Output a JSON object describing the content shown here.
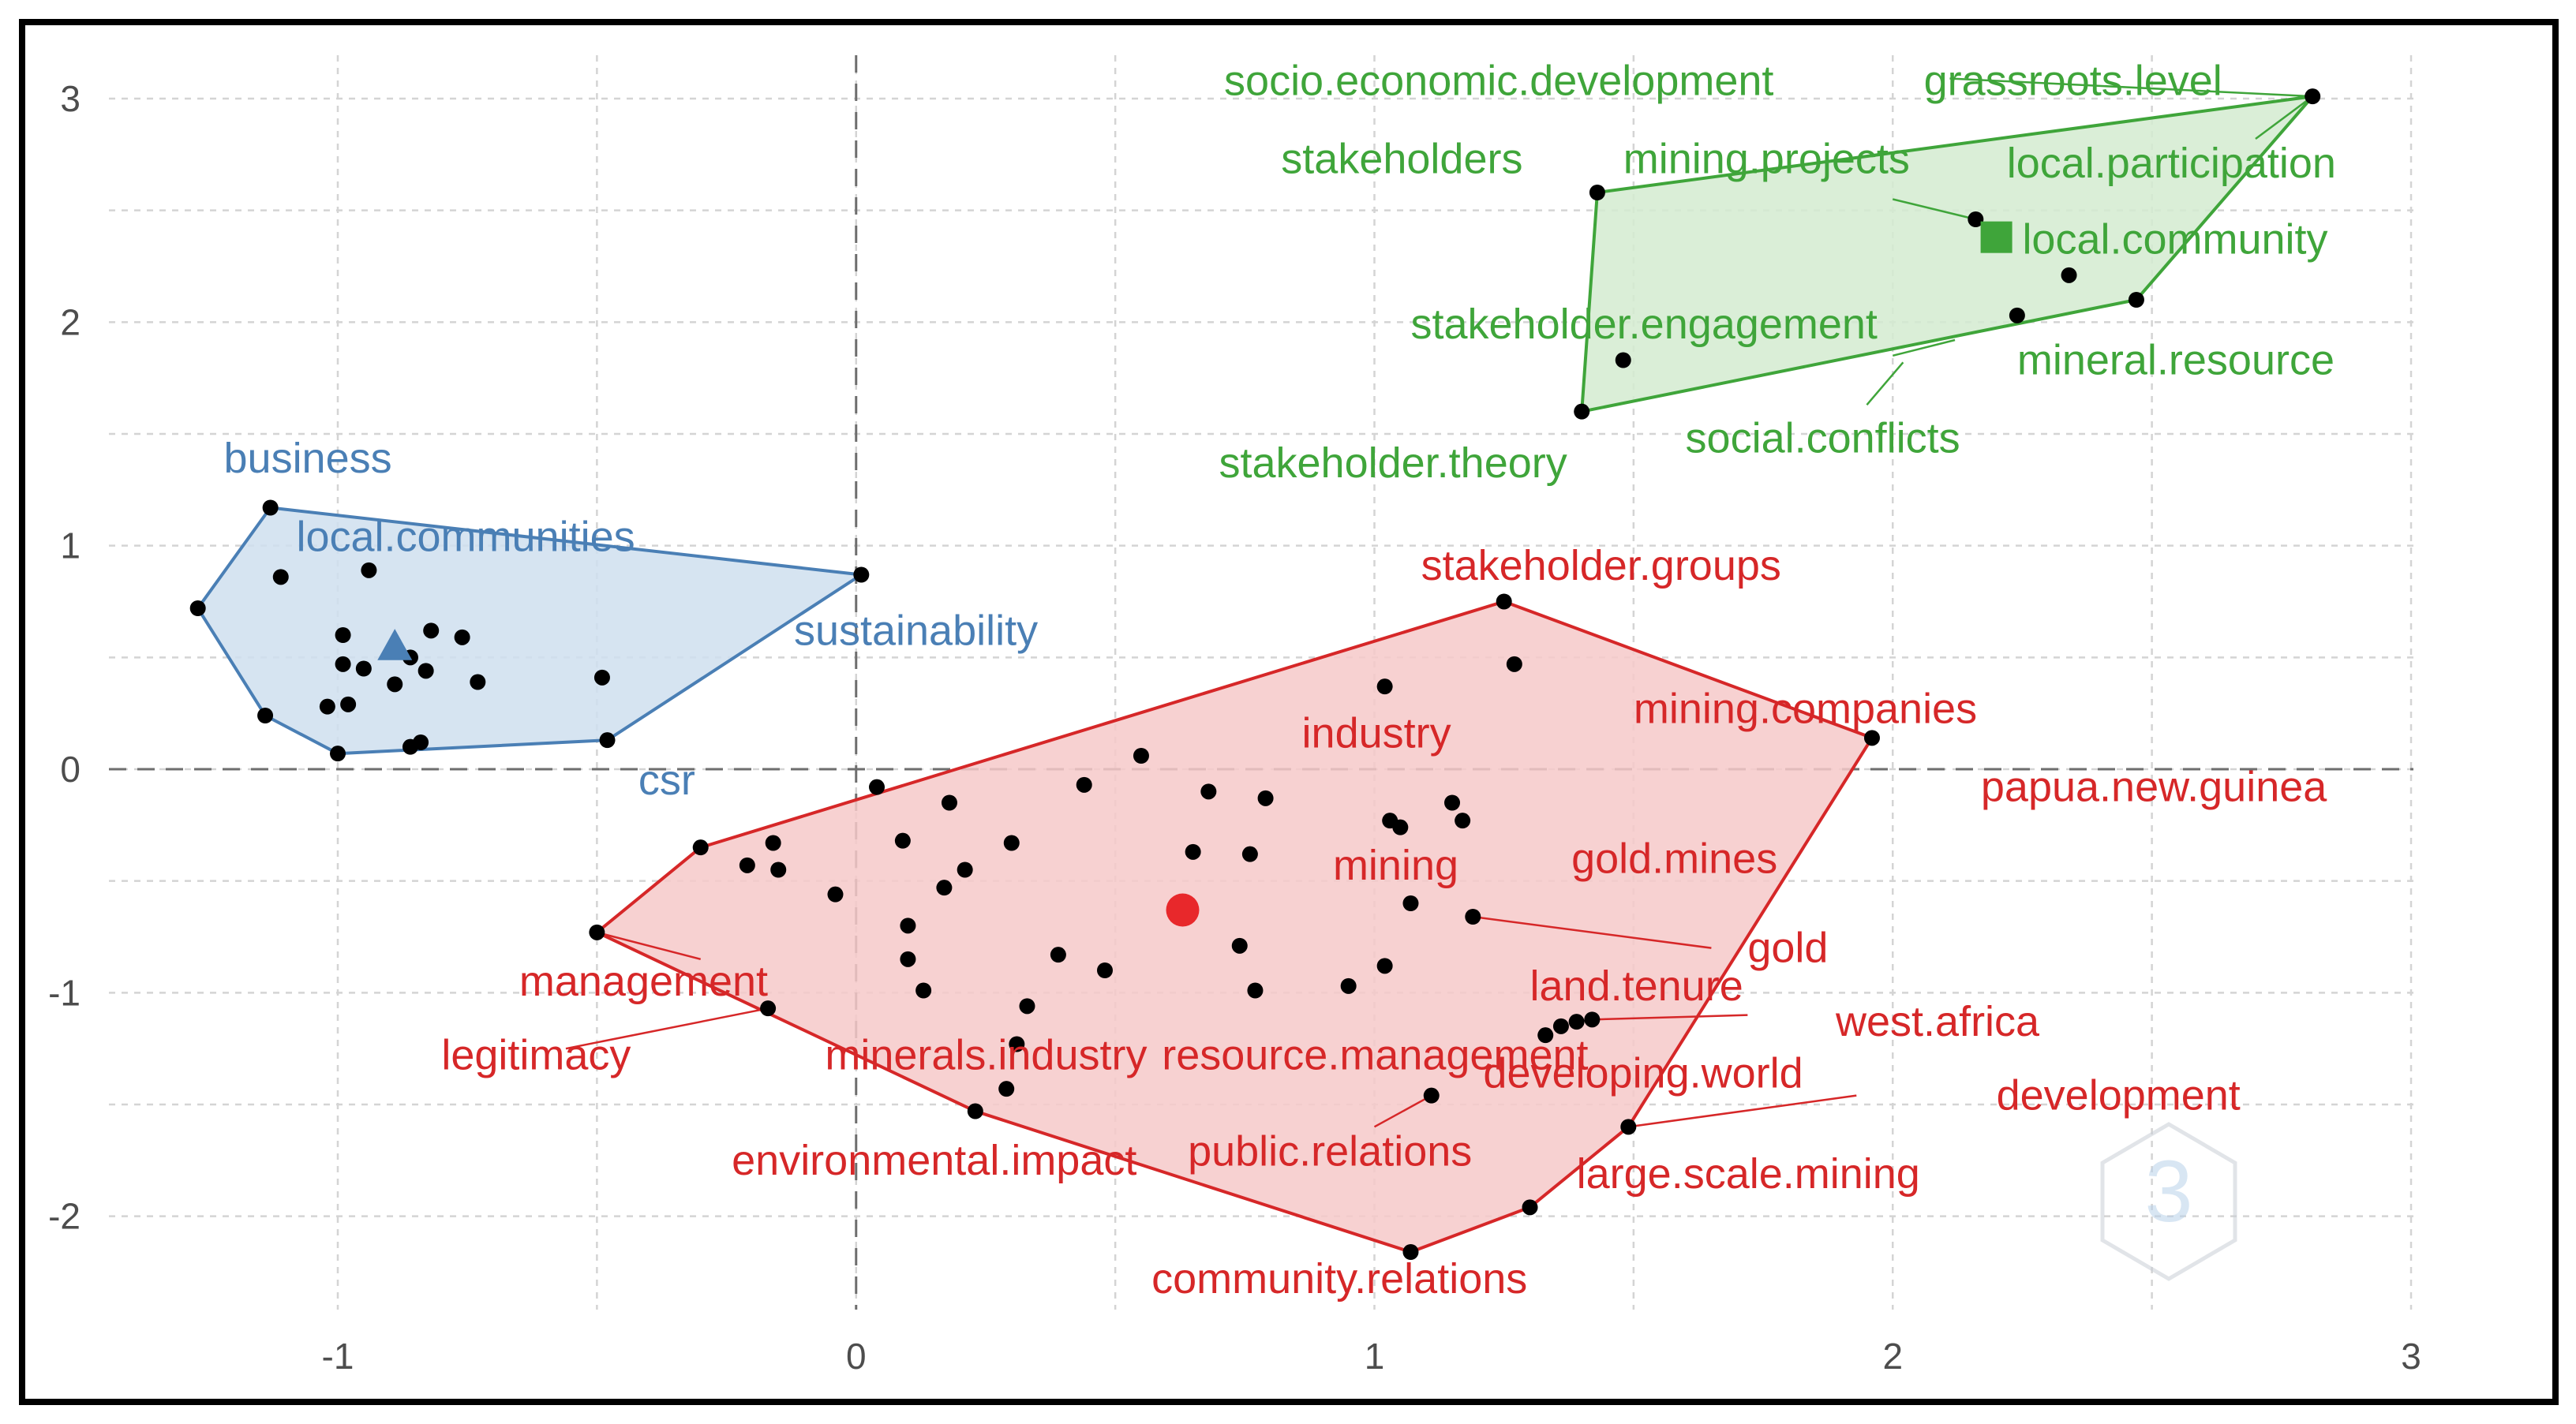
{
  "chart_data": {
    "type": "scatter",
    "title": "",
    "xlabel": "",
    "ylabel": "",
    "xlim": [
      -1.45,
      3.0
    ],
    "ylim": [
      -2.4,
      3.1
    ],
    "x_ticks": [
      -1,
      0,
      1,
      2,
      3
    ],
    "y_ticks": [
      3,
      2,
      1,
      0,
      -1,
      -2
    ],
    "grid": true,
    "colors": {
      "blue": "#4a7fb5",
      "green": "#3fa53a",
      "red": "#d62728",
      "point": "#000000"
    },
    "clusters": [
      {
        "name": "blue",
        "color": "#4a7fb5",
        "fill": "#cfdfee",
        "centroid": {
          "x": -0.89,
          "y": 0.55,
          "marker": "triangle"
        },
        "hull": [
          [
            -1.13,
            1.17
          ],
          [
            0.01,
            0.87
          ],
          [
            -0.48,
            0.13
          ],
          [
            -1.0,
            0.07
          ],
          [
            -1.14,
            0.24
          ],
          [
            -1.27,
            0.72
          ]
        ],
        "points": [
          [
            -1.13,
            1.17
          ],
          [
            -1.27,
            0.72
          ],
          [
            -1.11,
            0.86
          ],
          [
            -0.94,
            0.89
          ],
          [
            -0.99,
            0.6
          ],
          [
            -0.99,
            0.47
          ],
          [
            -0.95,
            0.45
          ],
          [
            -0.89,
            0.38
          ],
          [
            -0.86,
            0.5
          ],
          [
            -0.83,
            0.44
          ],
          [
            -0.82,
            0.62
          ],
          [
            -0.76,
            0.59
          ],
          [
            -0.73,
            0.39
          ],
          [
            -1.14,
            0.24
          ],
          [
            -1.02,
            0.28
          ],
          [
            -0.98,
            0.29
          ],
          [
            -1.0,
            0.07
          ],
          [
            -0.86,
            0.1
          ],
          [
            -0.84,
            0.12
          ],
          [
            -0.49,
            0.41
          ],
          [
            -0.48,
            0.13
          ],
          [
            0.01,
            0.87
          ]
        ],
        "labels": [
          {
            "text": "business",
            "x": -1.22,
            "y": 1.39
          },
          {
            "text": "local.communities",
            "x": -1.08,
            "y": 1.04
          },
          {
            "text": "sustainability",
            "x": -0.12,
            "y": 0.62
          },
          {
            "text": "csr",
            "x": -0.42,
            "y": -0.05
          }
        ]
      },
      {
        "name": "green",
        "color": "#3fa53a",
        "fill": "#d3ebd0",
        "centroid": {
          "x": 2.2,
          "y": 2.38,
          "marker": "square"
        },
        "hull": [
          [
            1.43,
            2.58
          ],
          [
            2.81,
            3.01
          ],
          [
            2.47,
            2.1
          ],
          [
            1.4,
            1.6
          ]
        ],
        "points": [
          [
            2.81,
            3.01
          ],
          [
            1.43,
            2.58
          ],
          [
            2.16,
            2.46
          ],
          [
            2.34,
            2.21
          ],
          [
            2.24,
            2.03
          ],
          [
            2.47,
            2.1
          ],
          [
            1.48,
            1.83
          ],
          [
            1.4,
            1.6
          ]
        ],
        "labels": [
          {
            "text": "socio.economic.development",
            "x": 0.71,
            "y": 3.08
          },
          {
            "text": "grassroots.level",
            "x": 2.06,
            "y": 3.08
          },
          {
            "text": "stakeholders",
            "x": 0.82,
            "y": 2.73
          },
          {
            "text": "mining.projects",
            "x": 1.48,
            "y": 2.73
          },
          {
            "text": "local.participation",
            "x": 2.22,
            "y": 2.71
          },
          {
            "text": "local.community",
            "x": 2.25,
            "y": 2.37
          },
          {
            "text": "stakeholder.engagement",
            "x": 1.07,
            "y": 1.99
          },
          {
            "text": "mineral.resource",
            "x": 2.24,
            "y": 1.83
          },
          {
            "text": "social.conflicts",
            "x": 1.6,
            "y": 1.48
          },
          {
            "text": "stakeholder.theory",
            "x": 0.7,
            "y": 1.37
          }
        ]
      },
      {
        "name": "red",
        "color": "#d62728",
        "fill": "#f6c9c9",
        "centroid": {
          "x": 0.63,
          "y": -0.63,
          "marker": "circle"
        },
        "hull": [
          [
            1.25,
            0.75
          ],
          [
            1.96,
            0.14
          ],
          [
            1.49,
            -1.6
          ],
          [
            1.3,
            -1.96
          ],
          [
            1.07,
            -2.16
          ],
          [
            0.23,
            -1.53
          ],
          [
            -0.5,
            -0.73
          ],
          [
            -0.3,
            -0.35
          ]
        ],
        "points": [
          [
            1.25,
            0.75
          ],
          [
            1.27,
            0.47
          ],
          [
            1.02,
            0.37
          ],
          [
            1.96,
            0.14
          ],
          [
            0.55,
            0.06
          ],
          [
            0.44,
            -0.07
          ],
          [
            0.68,
            -0.1
          ],
          [
            0.79,
            -0.13
          ],
          [
            1.15,
            -0.15
          ],
          [
            1.17,
            -0.23
          ],
          [
            1.03,
            -0.23
          ],
          [
            1.05,
            -0.26
          ],
          [
            0.04,
            -0.08
          ],
          [
            0.18,
            -0.15
          ],
          [
            0.09,
            -0.32
          ],
          [
            0.3,
            -0.33
          ],
          [
            0.65,
            -0.37
          ],
          [
            0.76,
            -0.38
          ],
          [
            0.21,
            -0.45
          ],
          [
            0.17,
            -0.53
          ],
          [
            -0.21,
            -0.43
          ],
          [
            -0.16,
            -0.33
          ],
          [
            -0.15,
            -0.45
          ],
          [
            -0.3,
            -0.35
          ],
          [
            -0.04,
            -0.56
          ],
          [
            1.07,
            -0.6
          ],
          [
            1.19,
            -0.66
          ],
          [
            0.1,
            -0.7
          ],
          [
            0.74,
            -0.79
          ],
          [
            0.39,
            -0.83
          ],
          [
            0.1,
            -0.85
          ],
          [
            0.48,
            -0.9
          ],
          [
            1.02,
            -0.88
          ],
          [
            0.95,
            -0.97
          ],
          [
            0.77,
            -0.99
          ],
          [
            0.13,
            -0.99
          ],
          [
            0.33,
            -1.06
          ],
          [
            0.31,
            -1.23
          ],
          [
            1.36,
            -1.15
          ],
          [
            1.42,
            -1.12
          ],
          [
            1.39,
            -1.13
          ],
          [
            1.33,
            -1.19
          ],
          [
            1.11,
            -1.46
          ],
          [
            0.29,
            -1.43
          ],
          [
            0.23,
            -1.53
          ],
          [
            1.49,
            -1.6
          ],
          [
            1.3,
            -1.96
          ],
          [
            1.07,
            -2.16
          ],
          [
            -0.5,
            -0.73
          ],
          [
            -0.17,
            -1.07
          ]
        ],
        "labels": [
          {
            "text": "stakeholder.groups",
            "x": 1.09,
            "y": 0.91
          },
          {
            "text": "industry",
            "x": 0.86,
            "y": 0.16
          },
          {
            "text": "mining.companies",
            "x": 1.5,
            "y": 0.27
          },
          {
            "text": "papua.new.guinea",
            "x": 2.17,
            "y": -0.08
          },
          {
            "text": "mining",
            "x": 0.92,
            "y": -0.43
          },
          {
            "text": "gold.mines",
            "x": 1.38,
            "y": -0.4
          },
          {
            "text": "gold",
            "x": 1.72,
            "y": -0.8
          },
          {
            "text": "management",
            "x": -0.65,
            "y": -0.95
          },
          {
            "text": "land.tenure",
            "x": 1.3,
            "y": -0.97
          },
          {
            "text": "west.africa",
            "x": 1.89,
            "y": -1.13
          },
          {
            "text": "legitimacy",
            "x": -0.8,
            "y": -1.28
          },
          {
            "text": "minerals.industry",
            "x": -0.06,
            "y": -1.28
          },
          {
            "text": "resource.management",
            "x": 0.59,
            "y": -1.28
          },
          {
            "text": "developing.world",
            "x": 1.21,
            "y": -1.36
          },
          {
            "text": "development",
            "x": 2.2,
            "y": -1.46
          },
          {
            "text": "environmental.impact",
            "x": -0.24,
            "y": -1.75
          },
          {
            "text": "public.relations",
            "x": 0.64,
            "y": -1.71
          },
          {
            "text": "large.scale.mining",
            "x": 1.39,
            "y": -1.81
          },
          {
            "text": "community.relations",
            "x": 0.57,
            "y": -2.28
          }
        ]
      }
    ],
    "leaders": [
      {
        "cluster": "green",
        "from": [
          2.11,
          3.09
        ],
        "to": [
          2.81,
          3.01
        ]
      },
      {
        "cluster": "green",
        "from": [
          2.7,
          2.82
        ],
        "to": [
          2.81,
          3.01
        ]
      },
      {
        "cluster": "green",
        "from": [
          2.0,
          2.55
        ],
        "to": [
          2.16,
          2.46
        ]
      },
      {
        "cluster": "green",
        "from": [
          2.12,
          1.92
        ],
        "to": [
          2.0,
          1.85
        ]
      },
      {
        "cluster": "green",
        "from": [
          2.02,
          1.82
        ],
        "to": [
          1.95,
          1.63
        ]
      },
      {
        "cluster": "red",
        "from": [
          1.19,
          -0.66
        ],
        "to": [
          1.65,
          -0.8
        ]
      },
      {
        "cluster": "red",
        "from": [
          1.42,
          -1.12
        ],
        "to": [
          1.72,
          -1.1
        ]
      },
      {
        "cluster": "red",
        "from": [
          1.49,
          -1.6
        ],
        "to": [
          1.93,
          -1.46
        ]
      },
      {
        "cluster": "red",
        "from": [
          1.11,
          -1.46
        ],
        "to": [
          1.0,
          -1.6
        ]
      },
      {
        "cluster": "red",
        "from": [
          -0.17,
          -1.07
        ],
        "to": [
          -0.56,
          -1.25
        ]
      },
      {
        "cluster": "red",
        "from": [
          -0.5,
          -0.73
        ],
        "to": [
          -0.3,
          -0.85
        ]
      }
    ]
  }
}
